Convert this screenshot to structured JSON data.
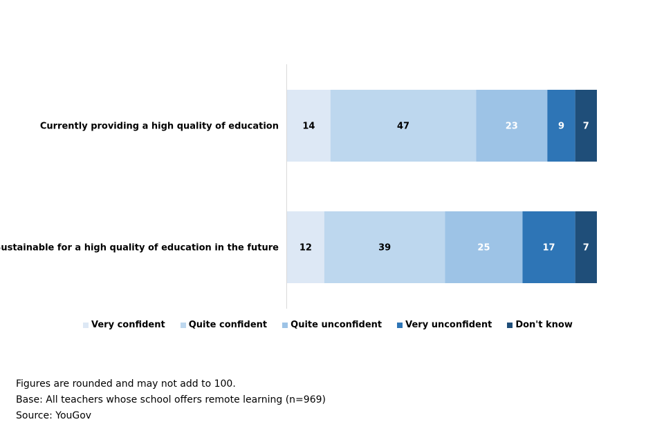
{
  "chart_data": {
    "type": "bar",
    "orientation": "horizontal",
    "stacked": true,
    "categories": [
      "Currently providing a high quality of education",
      "Sustainable for a high quality of education in the future"
    ],
    "series": [
      {
        "name": "Very confident",
        "color": "#dde8f5",
        "values": [
          14,
          12
        ],
        "label_color": "#000000"
      },
      {
        "name": "Quite confident",
        "color": "#bdd7ee",
        "values": [
          47,
          39
        ],
        "label_color": "#000000"
      },
      {
        "name": "Quite unconfident",
        "color": "#9dc3e6",
        "values": [
          23,
          25
        ],
        "label_color": "#ffffff"
      },
      {
        "name": "Very unconfident",
        "color": "#2e75b6",
        "values": [
          9,
          17
        ],
        "label_color": "#ffffff"
      },
      {
        "name": "Don't know",
        "color": "#1f4e79",
        "values": [
          7,
          7
        ],
        "label_color": "#ffffff"
      }
    ],
    "xlim": [
      0,
      100
    ],
    "grid": false,
    "legend_position": "bottom"
  },
  "notes": [
    "Figures are rounded and may not add to 100.",
    "Base: All teachers whose school offers remote learning  (n=969)",
    "Source: YouGov"
  ]
}
